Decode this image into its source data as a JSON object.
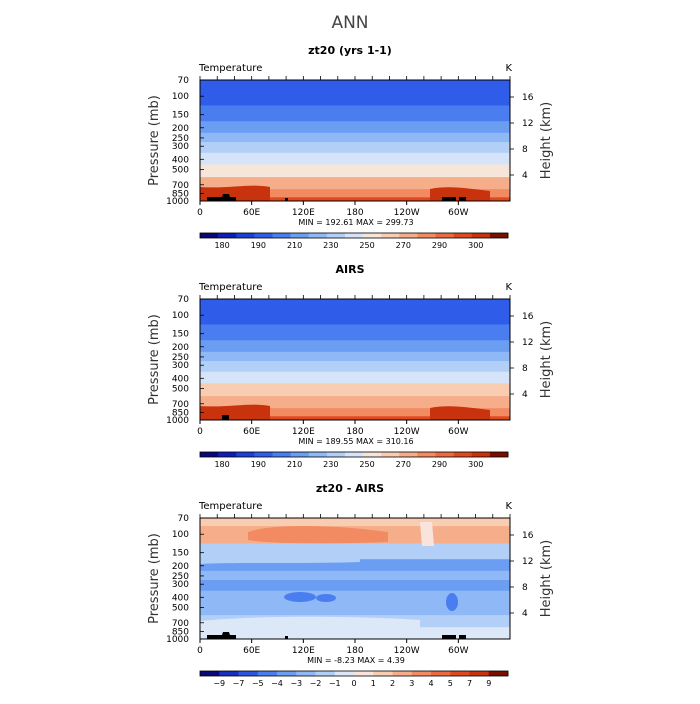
{
  "page_title": "ANN",
  "colors": {
    "abs_scale": [
      "#08087a",
      "#0b1fb4",
      "#1c3fd6",
      "#2f5ce8",
      "#4a7ef0",
      "#6b9df3",
      "#8fb8f6",
      "#b2cff8",
      "#d5e4f8",
      "#f6e6da",
      "#f9cdb2",
      "#f6ae8a",
      "#f28a62",
      "#ec6a40",
      "#e0491f",
      "#c8320d",
      "#7a0f00"
    ],
    "diff_scale": [
      "#08087a",
      "#1530c0",
      "#2b55e0",
      "#4a7ef0",
      "#6b9df3",
      "#8fb8f6",
      "#b2cff8",
      "#dce8f8",
      "#f8e4dc",
      "#f9cdb2",
      "#f6ae8a",
      "#f28a62",
      "#ec6a40",
      "#e0491f",
      "#c8320d",
      "#7a0f00"
    ],
    "land": "#000000"
  },
  "chart_data": [
    {
      "type": "heatmap",
      "title": "zt20 (yrs 1-1)",
      "field_label": "Temperature",
      "units": "K",
      "ylabel": "Pressure (mb)",
      "y2label": "Height (km)",
      "xticks": [
        "0",
        "60E",
        "120E",
        "180",
        "120W",
        "60W"
      ],
      "yticks": [
        "70",
        "100",
        "150",
        "200",
        "250",
        "300",
        "400",
        "500",
        "700",
        "850",
        "1000"
      ],
      "y2ticks": [
        "4",
        "8",
        "12",
        "16"
      ],
      "stats": "MIN = 192.61   MAX = 299.73",
      "cbar_ticks": [
        "180",
        "190",
        "210",
        "230",
        "250",
        "270",
        "290",
        "300"
      ],
      "bands": [
        {
          "p": 70,
          "v": 199
        },
        {
          "p": 100,
          "v": 198
        },
        {
          "p": 150,
          "v": 205
        },
        {
          "p": 200,
          "v": 216
        },
        {
          "p": 250,
          "v": 225
        },
        {
          "p": 300,
          "v": 233
        },
        {
          "p": 400,
          "v": 248
        },
        {
          "p": 500,
          "v": 259
        },
        {
          "p": 700,
          "v": 276
        },
        {
          "p": 850,
          "v": 286
        },
        {
          "p": 1000,
          "v": 295
        }
      ]
    },
    {
      "type": "heatmap",
      "title": "AIRS",
      "field_label": "Temperature",
      "units": "K",
      "ylabel": "Pressure (mb)",
      "y2label": "Height (km)",
      "xticks": [
        "0",
        "60E",
        "120E",
        "180",
        "120W",
        "60W"
      ],
      "yticks": [
        "70",
        "100",
        "150",
        "200",
        "250",
        "300",
        "400",
        "500",
        "700",
        "850",
        "1000"
      ],
      "y2ticks": [
        "4",
        "8",
        "12",
        "16"
      ],
      "stats": "MIN = 189.55   MAX = 310.16",
      "cbar_ticks": [
        "180",
        "190",
        "210",
        "230",
        "250",
        "270",
        "290",
        "300"
      ],
      "bands": [
        {
          "p": 70,
          "v": 198
        },
        {
          "p": 100,
          "v": 196
        },
        {
          "p": 150,
          "v": 206
        },
        {
          "p": 200,
          "v": 217
        },
        {
          "p": 250,
          "v": 226
        },
        {
          "p": 300,
          "v": 234
        },
        {
          "p": 400,
          "v": 249
        },
        {
          "p": 500,
          "v": 260
        },
        {
          "p": 700,
          "v": 277
        },
        {
          "p": 850,
          "v": 287
        },
        {
          "p": 1000,
          "v": 296
        }
      ]
    },
    {
      "type": "heatmap",
      "title": "zt20 - AIRS",
      "field_label": "Temperature",
      "units": "K",
      "ylabel": "Pressure (mb)",
      "y2label": "Height (km)",
      "xticks": [
        "0",
        "60E",
        "120E",
        "180",
        "120W",
        "60W"
      ],
      "yticks": [
        "70",
        "100",
        "150",
        "200",
        "250",
        "300",
        "400",
        "500",
        "700",
        "850",
        "1000"
      ],
      "y2ticks": [
        "4",
        "8",
        "12",
        "16"
      ],
      "stats": "MIN =   -8.23   MAX =    4.39",
      "cbar_ticks": [
        "−9",
        "−7",
        "−5",
        "−4",
        "−3",
        "−2",
        "−1",
        "0",
        "1",
        "2",
        "3",
        "4",
        "5",
        "7",
        "9"
      ],
      "bands": [
        {
          "p": 70,
          "v": 1.5
        },
        {
          "p": 100,
          "v": 2.5
        },
        {
          "p": 150,
          "v": -1.5
        },
        {
          "p": 200,
          "v": -3.2
        },
        {
          "p": 250,
          "v": -3.0
        },
        {
          "p": 300,
          "v": -3.2
        },
        {
          "p": 400,
          "v": -3.0
        },
        {
          "p": 500,
          "v": -2.5
        },
        {
          "p": 700,
          "v": -1.5
        },
        {
          "p": 850,
          "v": -0.5
        },
        {
          "p": 1000,
          "v": -1.0
        }
      ]
    }
  ]
}
